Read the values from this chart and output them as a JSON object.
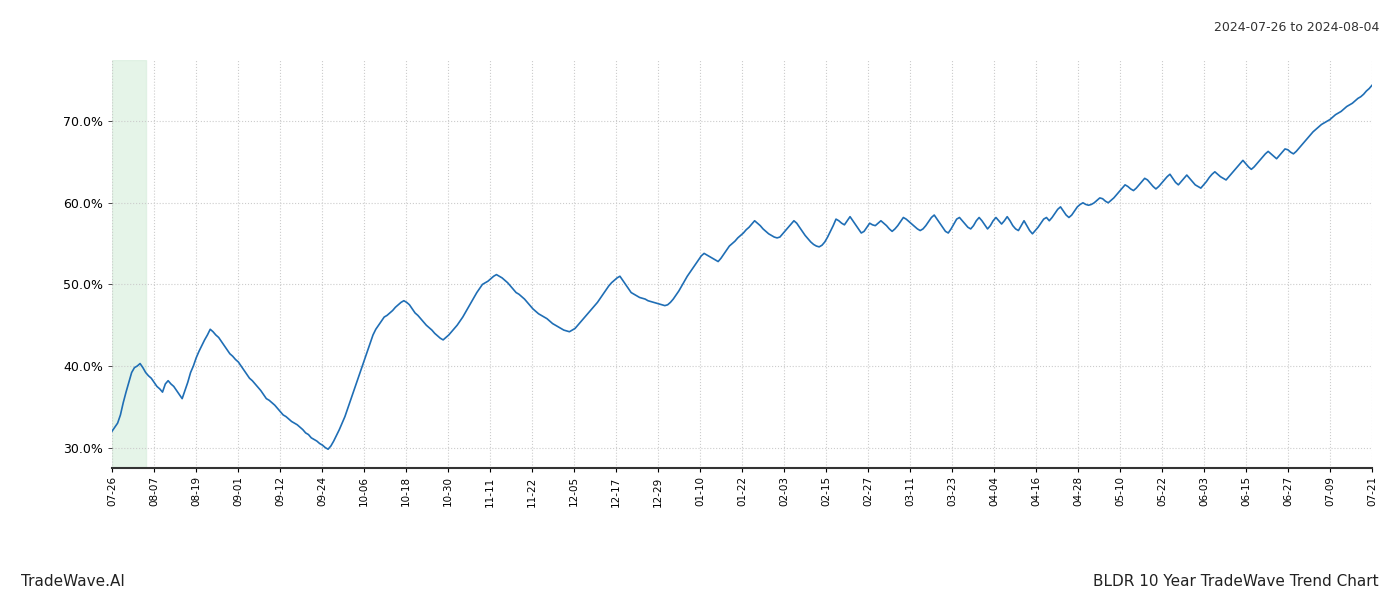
{
  "title_top_right": "2024-07-26 to 2024-08-04",
  "footer_left": "TradeWave.AI",
  "footer_right": "BLDR 10 Year TradeWave Trend Chart",
  "line_color": "#1f6eb5",
  "line_width": 1.2,
  "highlight_color": "#d4edda",
  "highlight_alpha": 0.6,
  "background_color": "#ffffff",
  "grid_color": "#cccccc",
  "ylim": [
    0.275,
    0.775
  ],
  "yticks": [
    0.3,
    0.4,
    0.5,
    0.6,
    0.7
  ],
  "x_labels": [
    "07-26",
    "08-07",
    "08-19",
    "09-01",
    "09-12",
    "09-24",
    "10-06",
    "10-18",
    "10-30",
    "11-11",
    "11-22",
    "12-05",
    "12-17",
    "12-29",
    "01-10",
    "01-22",
    "02-03",
    "02-15",
    "02-27",
    "03-11",
    "03-23",
    "04-04",
    "04-16",
    "04-28",
    "05-10",
    "05-22",
    "06-03",
    "06-15",
    "06-27",
    "07-09",
    "07-21"
  ],
  "values": [
    0.32,
    0.325,
    0.33,
    0.34,
    0.355,
    0.368,
    0.38,
    0.392,
    0.398,
    0.4,
    0.403,
    0.398,
    0.392,
    0.388,
    0.385,
    0.38,
    0.375,
    0.372,
    0.368,
    0.378,
    0.382,
    0.378,
    0.375,
    0.37,
    0.365,
    0.36,
    0.37,
    0.38,
    0.392,
    0.4,
    0.41,
    0.418,
    0.425,
    0.432,
    0.438,
    0.445,
    0.442,
    0.438,
    0.435,
    0.43,
    0.425,
    0.42,
    0.415,
    0.412,
    0.408,
    0.405,
    0.4,
    0.395,
    0.39,
    0.385,
    0.382,
    0.378,
    0.374,
    0.37,
    0.365,
    0.36,
    0.358,
    0.355,
    0.352,
    0.348,
    0.344,
    0.34,
    0.338,
    0.335,
    0.332,
    0.33,
    0.328,
    0.325,
    0.322,
    0.318,
    0.316,
    0.312,
    0.31,
    0.308,
    0.305,
    0.303,
    0.3,
    0.298,
    0.302,
    0.308,
    0.315,
    0.322,
    0.33,
    0.338,
    0.348,
    0.358,
    0.368,
    0.378,
    0.388,
    0.398,
    0.408,
    0.418,
    0.428,
    0.438,
    0.445,
    0.45,
    0.455,
    0.46,
    0.462,
    0.465,
    0.468,
    0.472,
    0.475,
    0.478,
    0.48,
    0.478,
    0.475,
    0.47,
    0.465,
    0.462,
    0.458,
    0.454,
    0.45,
    0.447,
    0.444,
    0.44,
    0.437,
    0.434,
    0.432,
    0.435,
    0.438,
    0.442,
    0.446,
    0.45,
    0.455,
    0.46,
    0.466,
    0.472,
    0.478,
    0.484,
    0.49,
    0.495,
    0.5,
    0.502,
    0.504,
    0.507,
    0.51,
    0.512,
    0.51,
    0.508,
    0.505,
    0.502,
    0.498,
    0.494,
    0.49,
    0.488,
    0.485,
    0.482,
    0.478,
    0.474,
    0.47,
    0.467,
    0.464,
    0.462,
    0.46,
    0.458,
    0.455,
    0.452,
    0.45,
    0.448,
    0.446,
    0.444,
    0.443,
    0.442,
    0.444,
    0.446,
    0.45,
    0.454,
    0.458,
    0.462,
    0.466,
    0.47,
    0.474,
    0.478,
    0.483,
    0.488,
    0.493,
    0.498,
    0.502,
    0.505,
    0.508,
    0.51,
    0.505,
    0.5,
    0.495,
    0.49,
    0.488,
    0.486,
    0.484,
    0.483,
    0.482,
    0.48,
    0.479,
    0.478,
    0.477,
    0.476,
    0.475,
    0.474,
    0.475,
    0.478,
    0.482,
    0.487,
    0.492,
    0.498,
    0.504,
    0.51,
    0.515,
    0.52,
    0.525,
    0.53,
    0.535,
    0.538,
    0.536,
    0.534,
    0.532,
    0.53,
    0.528,
    0.532,
    0.537,
    0.542,
    0.547,
    0.55,
    0.553,
    0.557,
    0.56,
    0.563,
    0.567,
    0.57,
    0.574,
    0.578,
    0.575,
    0.572,
    0.568,
    0.565,
    0.562,
    0.56,
    0.558,
    0.557,
    0.558,
    0.562,
    0.566,
    0.57,
    0.574,
    0.578,
    0.575,
    0.57,
    0.565,
    0.56,
    0.556,
    0.552,
    0.549,
    0.547,
    0.546,
    0.548,
    0.552,
    0.558,
    0.565,
    0.572,
    0.58,
    0.578,
    0.575,
    0.573,
    0.578,
    0.583,
    0.578,
    0.573,
    0.568,
    0.563,
    0.565,
    0.57,
    0.575,
    0.573,
    0.572,
    0.575,
    0.578,
    0.575,
    0.572,
    0.568,
    0.565,
    0.568,
    0.572,
    0.577,
    0.582,
    0.58,
    0.577,
    0.574,
    0.571,
    0.568,
    0.566,
    0.568,
    0.572,
    0.577,
    0.582,
    0.585,
    0.58,
    0.575,
    0.57,
    0.565,
    0.563,
    0.568,
    0.574,
    0.58,
    0.582,
    0.578,
    0.574,
    0.57,
    0.568,
    0.572,
    0.578,
    0.582,
    0.578,
    0.573,
    0.568,
    0.572,
    0.578,
    0.582,
    0.578,
    0.574,
    0.578,
    0.583,
    0.578,
    0.572,
    0.568,
    0.566,
    0.572,
    0.578,
    0.572,
    0.566,
    0.562,
    0.566,
    0.57,
    0.575,
    0.58,
    0.582,
    0.578,
    0.582,
    0.587,
    0.592,
    0.595,
    0.59,
    0.585,
    0.582,
    0.585,
    0.59,
    0.595,
    0.598,
    0.6,
    0.598,
    0.597,
    0.598,
    0.6,
    0.603,
    0.606,
    0.605,
    0.602,
    0.6,
    0.603,
    0.606,
    0.61,
    0.614,
    0.618,
    0.622,
    0.62,
    0.617,
    0.615,
    0.618,
    0.622,
    0.626,
    0.63,
    0.628,
    0.624,
    0.62,
    0.617,
    0.62,
    0.624,
    0.628,
    0.632,
    0.635,
    0.63,
    0.625,
    0.622,
    0.626,
    0.63,
    0.634,
    0.63,
    0.626,
    0.622,
    0.62,
    0.618,
    0.622,
    0.626,
    0.631,
    0.635,
    0.638,
    0.635,
    0.632,
    0.63,
    0.628,
    0.632,
    0.636,
    0.64,
    0.644,
    0.648,
    0.652,
    0.648,
    0.644,
    0.641,
    0.644,
    0.648,
    0.652,
    0.656,
    0.66,
    0.663,
    0.66,
    0.657,
    0.654,
    0.658,
    0.662,
    0.666,
    0.665,
    0.662,
    0.66,
    0.663,
    0.667,
    0.671,
    0.675,
    0.679,
    0.683,
    0.687,
    0.69,
    0.693,
    0.696,
    0.698,
    0.7,
    0.702,
    0.705,
    0.708,
    0.71,
    0.712,
    0.715,
    0.718,
    0.72,
    0.722,
    0.725,
    0.728,
    0.73,
    0.733,
    0.737,
    0.74,
    0.744
  ]
}
